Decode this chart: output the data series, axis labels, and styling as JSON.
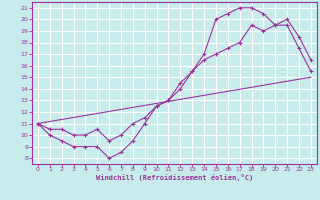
{
  "xlabel": "Windchill (Refroidissement éolien,°C)",
  "bg_color": "#c8ecec",
  "line_color": "#993399",
  "grid_color": "#ffffff",
  "spine_color": "#993399",
  "xlim": [
    -0.5,
    23.5
  ],
  "ylim": [
    7.5,
    21.5
  ],
  "xticks": [
    0,
    1,
    2,
    3,
    4,
    5,
    6,
    7,
    8,
    9,
    10,
    11,
    12,
    13,
    14,
    15,
    16,
    17,
    18,
    19,
    20,
    21,
    22,
    23
  ],
  "yticks": [
    8,
    9,
    10,
    11,
    12,
    13,
    14,
    15,
    16,
    17,
    18,
    19,
    20,
    21
  ],
  "series1_x": [
    0,
    1,
    2,
    3,
    4,
    5,
    6,
    7,
    8,
    9,
    10,
    11,
    12,
    13,
    14,
    15,
    16,
    17,
    18,
    19,
    20,
    21,
    22,
    23
  ],
  "series1_y": [
    11.0,
    10.0,
    9.5,
    9.0,
    9.0,
    9.0,
    8.0,
    8.5,
    9.5,
    11.0,
    12.5,
    13.0,
    14.0,
    15.5,
    17.0,
    20.0,
    20.5,
    21.0,
    21.0,
    20.5,
    19.5,
    20.0,
    18.5,
    16.5
  ],
  "series2_x": [
    0,
    1,
    2,
    3,
    4,
    5,
    6,
    7,
    8,
    9,
    10,
    11,
    12,
    13,
    14,
    15,
    16,
    17,
    18,
    19,
    20,
    21,
    22,
    23
  ],
  "series2_y": [
    11.0,
    10.5,
    10.5,
    10.0,
    10.0,
    10.5,
    9.5,
    10.0,
    11.0,
    11.5,
    12.5,
    13.0,
    14.5,
    15.5,
    16.5,
    17.0,
    17.5,
    18.0,
    19.5,
    19.0,
    19.5,
    19.5,
    17.5,
    15.5
  ],
  "series3_x": [
    0,
    23
  ],
  "series3_y": [
    11.0,
    15.0
  ]
}
